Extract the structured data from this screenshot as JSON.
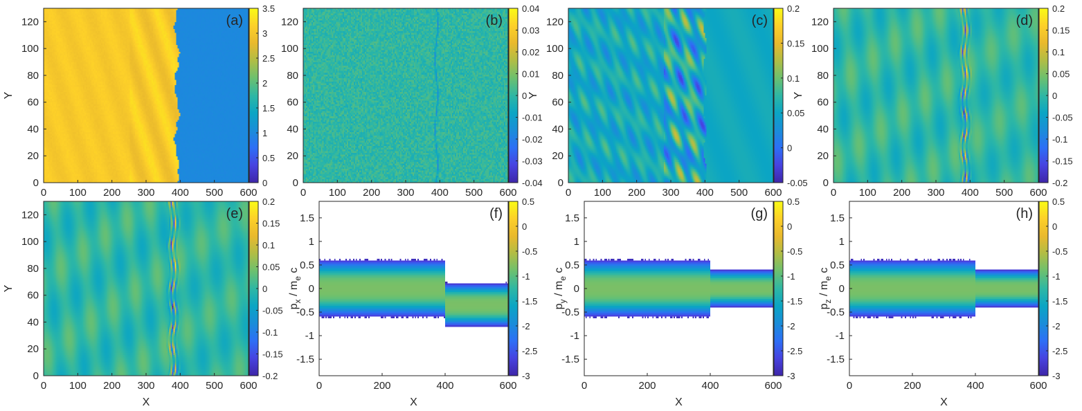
{
  "colormap": [
    "#3e26a8",
    "#4743e0",
    "#2d6ff6",
    "#1a8dd9",
    "#0ba5c4",
    "#2eb7a4",
    "#6cc06f",
    "#b0bd45",
    "#e9b92d",
    "#fdd029",
    "#f9fb15"
  ],
  "chart_data": [
    {
      "id": "a",
      "type": "heatmap",
      "label": "(a)",
      "field": "front",
      "xlim": [
        0,
        600
      ],
      "ylim": [
        0,
        130
      ],
      "xticks": [
        0,
        100,
        200,
        300,
        400,
        500,
        600
      ],
      "yticks": [
        0,
        20,
        40,
        60,
        80,
        100,
        120
      ],
      "ylabel": "Y",
      "xlabel": "",
      "clim": [
        0,
        3.5
      ],
      "cticks": [
        "0",
        "0.5",
        "1",
        "1.5",
        "2",
        "2.5",
        "3",
        "3.5"
      ],
      "front_x": 390,
      "upstream_value": 3.05,
      "downstream_value": 1.0
    },
    {
      "id": "b",
      "type": "heatmap",
      "label": "(b)",
      "field": "noise",
      "xlim": [
        0,
        600
      ],
      "ylim": [
        0,
        130
      ],
      "xticks": [
        0,
        100,
        200,
        300,
        400,
        500,
        600
      ],
      "yticks": [
        0,
        20,
        40,
        60,
        80,
        100,
        120
      ],
      "ylabel": "",
      "xlabel": "",
      "clim": [
        -0.04,
        0.04
      ],
      "cticks": [
        "-0.04",
        "-0.03",
        "-0.02",
        "-0.01",
        "0",
        "0.01",
        "0.02",
        "0.03",
        "0.04"
      ],
      "front_x": 390
    },
    {
      "id": "c",
      "type": "heatmap",
      "label": "(c)",
      "field": "turbulent",
      "xlim": [
        0,
        600
      ],
      "ylim": [
        0,
        130
      ],
      "xticks": [
        0,
        100,
        200,
        300,
        400,
        500,
        600
      ],
      "yticks": [
        0,
        20,
        40,
        60,
        80,
        100,
        120
      ],
      "ylabel": "Y",
      "xlabel": "",
      "clim": [
        -0.05,
        0.2
      ],
      "cticks": [
        "-0.05",
        "0",
        "0.05",
        "0.1",
        "0.15",
        "0.2"
      ],
      "front_x": 400
    },
    {
      "id": "d",
      "type": "heatmap",
      "label": "(d)",
      "field": "wave",
      "xlim": [
        0,
        600
      ],
      "ylim": [
        0,
        130
      ],
      "xticks": [
        0,
        100,
        200,
        300,
        400,
        500,
        600
      ],
      "yticks": [
        0,
        20,
        40,
        60,
        80,
        100,
        120
      ],
      "ylabel": "Y",
      "xlabel": "",
      "clim": [
        -0.2,
        0.2
      ],
      "cticks": [
        "-0.2",
        "-0.15",
        "-0.1",
        "-0.05",
        "0",
        "0.05",
        "0.1",
        "0.15",
        "0.2"
      ],
      "front_x": 385
    },
    {
      "id": "e",
      "type": "heatmap",
      "label": "(e)",
      "field": "wave",
      "xlim": [
        0,
        600
      ],
      "ylim": [
        0,
        130
      ],
      "xticks": [
        0,
        100,
        200,
        300,
        400,
        500,
        600
      ],
      "yticks": [
        0,
        20,
        40,
        60,
        80,
        100,
        120
      ],
      "ylabel": "Y",
      "xlabel": "X",
      "clim": [
        -0.2,
        0.2
      ],
      "cticks": [
        "-0.2",
        "-0.15",
        "-0.1",
        "-0.05",
        "0",
        "0.05",
        "0.1",
        "0.15",
        "0.2"
      ],
      "front_x": 380
    },
    {
      "id": "f",
      "type": "heatmap",
      "label": "(f)",
      "field": "phase",
      "xlim": [
        0,
        600
      ],
      "ylim": [
        -1.85,
        1.85
      ],
      "xticks": [
        0,
        200,
        400,
        600
      ],
      "yticks": [
        -1.5,
        -1,
        -0.5,
        0,
        0.5,
        1,
        1.5
      ],
      "ylabel": "p_x / m_e c",
      "ylabel_main": "p",
      "ylabel_sub": "x",
      "ylabel_mid": " / m",
      "ylabel_sub2": "e",
      "ylabel_end": " c",
      "xlabel": "X",
      "clim": [
        -3,
        0.5
      ],
      "cticks": [
        "-3",
        "-2.5",
        "-2",
        "-1.5",
        "-1",
        "-0.5",
        "0",
        "0.5"
      ],
      "front_x": 400,
      "down_center": -0.35,
      "down_width": 0.32
    },
    {
      "id": "g",
      "type": "heatmap",
      "label": "(g)",
      "field": "phase",
      "xlim": [
        0,
        600
      ],
      "ylim": [
        -1.85,
        1.85
      ],
      "xticks": [
        0,
        200,
        400,
        600
      ],
      "yticks": [
        -1.5,
        -1,
        -0.5,
        0,
        0.5,
        1,
        1.5
      ],
      "ylabel": "p_y / m_e c",
      "ylabel_main": "p",
      "ylabel_sub": "y",
      "ylabel_mid": " / m",
      "ylabel_sub2": "e",
      "ylabel_end": " c",
      "xlabel": "X",
      "clim": [
        -3,
        0.5
      ],
      "cticks": [
        "-3",
        "-2.5",
        "-2",
        "-1.5",
        "-1",
        "-0.5",
        "0",
        "0.5"
      ],
      "front_x": 400,
      "down_center": 0.0,
      "down_width": 0.28
    },
    {
      "id": "h",
      "type": "heatmap",
      "label": "(h)",
      "field": "phase",
      "xlim": [
        0,
        600
      ],
      "ylim": [
        -1.85,
        1.85
      ],
      "xticks": [
        0,
        200,
        400,
        600
      ],
      "yticks": [
        -1.5,
        -1,
        -0.5,
        0,
        0.5,
        1,
        1.5
      ],
      "ylabel": "p_z / m_e c",
      "ylabel_main": "p",
      "ylabel_sub": "z",
      "ylabel_mid": " / m",
      "ylabel_sub2": "e",
      "ylabel_end": " c",
      "xlabel": "X",
      "clim": [
        -3,
        0.5
      ],
      "cticks": [
        "-3",
        "-2.5",
        "-2",
        "-1.5",
        "-1",
        "-0.5",
        "0",
        "0.5"
      ],
      "front_x": 400,
      "down_center": 0.0,
      "down_width": 0.28
    }
  ]
}
